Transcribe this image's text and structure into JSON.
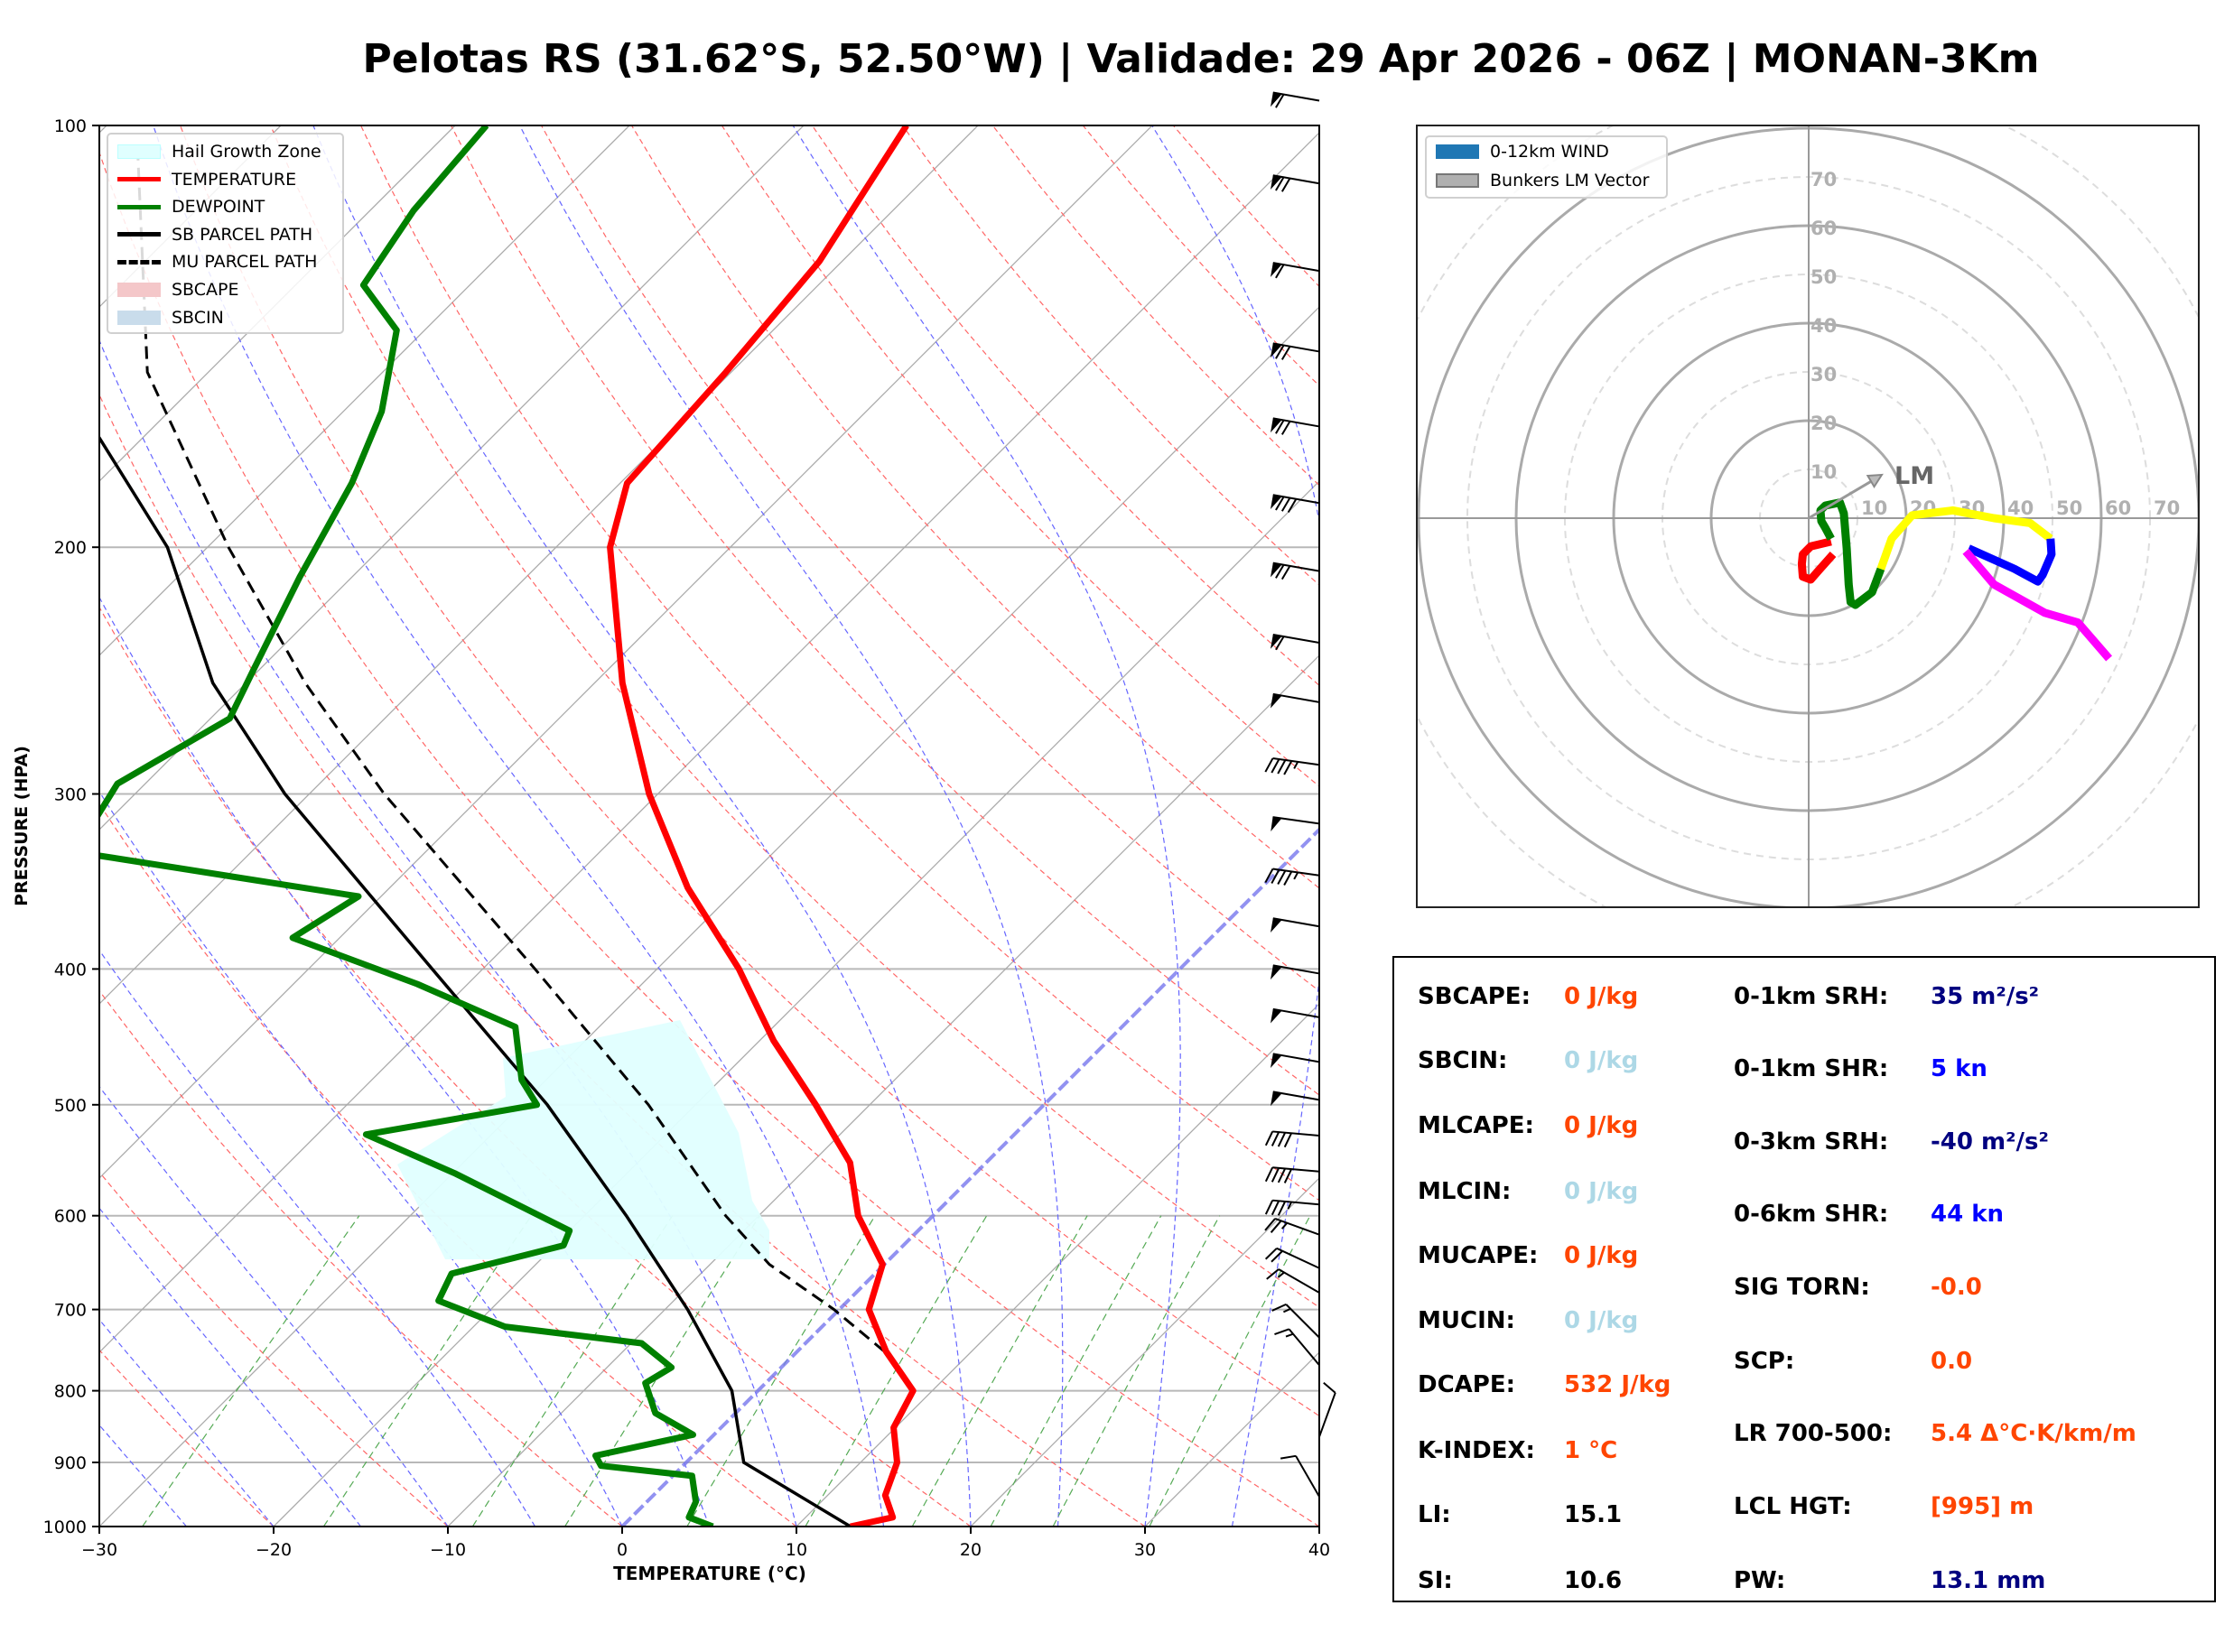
{
  "title": "Pelotas RS (31.62°S, 52.50°W) | Validade: 29 Apr 2026 - 06Z | MONAN-3Km",
  "colors": {
    "temperature": "#ff0000",
    "dewpoint": "#008000",
    "parcel": "#000000",
    "hail": "#e0ffff",
    "orange": "#ff4500",
    "lightblue": "#add8e6",
    "navy": "#000080",
    "blue": "#0000ff"
  },
  "skewt_legend": [
    {
      "label": "Hail Growth Zone",
      "style": "fill",
      "color": "#e0ffff"
    },
    {
      "label": "TEMPERATURE",
      "style": "line",
      "color": "#ff0000"
    },
    {
      "label": "DEWPOINT",
      "style": "line",
      "color": "#008000"
    },
    {
      "label": "SB PARCEL PATH",
      "style": "line",
      "color": "#000000"
    },
    {
      "label": "MU PARCEL PATH",
      "style": "dashed",
      "color": "#000000"
    },
    {
      "label": "SBCAPE",
      "style": "fill",
      "color": "#f4c7c9"
    },
    {
      "label": "SBCIN",
      "style": "fill",
      "color": "#c9dceb"
    }
  ],
  "hodo_legend": [
    {
      "label": "0-12km WIND",
      "style": "fill",
      "color": "#1f77b4"
    },
    {
      "label": "Bunkers LM Vector",
      "style": "fill",
      "color": "#b0b0b0"
    }
  ],
  "chart_data": [
    {
      "type": "skew-t",
      "xlabel": "TEMPERATURE (°C)",
      "ylabel": "PRESSURE (HPA)",
      "xlim": [
        -30,
        40
      ],
      "ylim": [
        1000,
        100
      ],
      "yscale": "log",
      "xticks": [
        -30,
        -20,
        -10,
        0,
        10,
        20,
        30,
        40
      ],
      "yticks": [
        100,
        200,
        300,
        400,
        500,
        600,
        700,
        800,
        900,
        1000
      ],
      "grid": true,
      "legend_position": "top-left",
      "temperature": {
        "p": [
          1000,
          985,
          950,
          900,
          850,
          800,
          750,
          700,
          650,
          600,
          550,
          500,
          450,
          400,
          350,
          300,
          250,
          200,
          180,
          150,
          125,
          100
        ],
        "t": [
          13.1,
          15.0,
          13.3,
          12.1,
          9.9,
          8.9,
          5.1,
          1.7,
          -0.1,
          -4.3,
          -7.8,
          -13.1,
          -19.2,
          -25.3,
          -32.9,
          -40.5,
          -48.4,
          -56.9,
          -59.6,
          -60.3,
          -61.3,
          -64.1
        ]
      },
      "dewpoint": {
        "p": [
          1000,
          985,
          960,
          920,
          905,
          890,
          860,
          830,
          790,
          770,
          740,
          720,
          690,
          660,
          630,
          615,
          560,
          525,
          500,
          480,
          440,
          410,
          380,
          355,
          330,
          295,
          265,
          245,
          210,
          180,
          160,
          140,
          130,
          115,
          100
        ],
        "td": [
          5.2,
          3.3,
          2.8,
          1.1,
          -4.7,
          -5.6,
          -1.2,
          -4.6,
          -6.9,
          -6.3,
          -9.4,
          -18.2,
          -23.5,
          -24.3,
          -19.5,
          -20.0,
          -29.8,
          -37.2,
          -29.1,
          -31.4,
          -34.8,
          -42.9,
          -52.7,
          -51.3,
          -70.1,
          -71.6,
          -68.9,
          -70.3,
          -73.0,
          -75.4,
          -77.8,
          -81.6,
          -86.1,
          -87.5,
          -88.2
        ]
      },
      "sb_parcel": {
        "p": [
          1000,
          900,
          800,
          700,
          600,
          500,
          400,
          300,
          250,
          200,
          165
        ],
        "t": [
          13.1,
          3.3,
          -1.5,
          -8.7,
          -17.6,
          -28.5,
          -42.9,
          -61.4,
          -71.9,
          -82.3,
          -93.2
        ]
      },
      "mu_parcel": {
        "p": [
          750,
          700,
          650,
          600,
          500,
          400,
          300,
          250,
          200,
          150,
          105
        ],
        "t": [
          5.0,
          -0.3,
          -6.6,
          -11.9,
          -22.7,
          -37.0,
          -55.7,
          -66.6,
          -78.8,
          -93.5,
          -106.5
        ]
      },
      "hail_growth_zone_hpa": [
        650,
        440
      ],
      "wind_barbs": {
        "p": [
          96,
          110,
          127,
          145,
          164,
          186,
          208,
          234,
          258,
          286,
          315,
          343,
          373,
          403,
          433,
          466,
          496,
          526,
          558,
          589,
          619,
          654,
          681,
          733,
          767,
          863,
          952
        ],
        "dir": [
          280,
          280,
          280,
          280,
          280,
          280,
          280,
          280,
          280,
          278,
          278,
          278,
          280,
          280,
          280,
          280,
          280,
          275,
          275,
          275,
          290,
          295,
          300,
          315,
          320,
          20,
          330
        ],
        "spd_kt": [
          60,
          70,
          60,
          70,
          70,
          80,
          70,
          60,
          50,
          45,
          50,
          45,
          50,
          50,
          50,
          50,
          50,
          40,
          40,
          35,
          25,
          20,
          15,
          15,
          15,
          10,
          10
        ]
      }
    },
    {
      "type": "hodograph",
      "ring_labels": [
        "10",
        "20",
        "30",
        "40",
        "50",
        "60",
        "70"
      ],
      "rings_kt": [
        10,
        20,
        30,
        40,
        50,
        60,
        70,
        80,
        90
      ],
      "segments": [
        {
          "color": "#ff0000",
          "u": [
            4.6,
            0.4,
            -1.2,
            -1.4,
            -1.2,
            0.4,
            1.8,
            5.0
          ],
          "v": [
            -4.8,
            -5.8,
            -7.4,
            -9.4,
            -12.0,
            -12.6,
            -11.0,
            -7.4
          ]
        },
        {
          "color": "#008000",
          "u": [
            4.6,
            3.4,
            2.6,
            2.4,
            3.4,
            6.4,
            7.2,
            7.8,
            8.2,
            8.6,
            9.6,
            13.0,
            14.8
          ],
          "v": [
            -4.2,
            -2.0,
            -0.6,
            1.6,
            2.6,
            3.2,
            1.0,
            -6.2,
            -13.6,
            -17.2,
            -17.8,
            -15.2,
            -10.4
          ]
        },
        {
          "color": "#ffff00",
          "u": [
            14.8,
            17.0,
            21.2,
            29.6,
            38.0,
            45.4,
            49.6
          ],
          "v": [
            -10.4,
            -4.2,
            0.6,
            1.6,
            0,
            -1.0,
            -4.2
          ]
        },
        {
          "color": "#0000ff",
          "u": [
            49.6,
            49.8,
            48.0,
            47.0,
            42.2,
            32.8
          ],
          "v": [
            -4.2,
            -7.4,
            -11.6,
            -13.0,
            -10.4,
            -6.2
          ]
        },
        {
          "color": "#ff00ff",
          "u": [
            32.2,
            38.0,
            48.4,
            55.2,
            61.6
          ],
          "v": [
            -6.8,
            -13.6,
            -19.4,
            -21.4,
            -28.8
          ]
        }
      ],
      "bunkers_lm": {
        "label": "LM",
        "u": 15.0,
        "v": 8.9
      }
    }
  ],
  "stats": {
    "left": [
      {
        "label": "SBCAPE:",
        "value": "0 J/kg",
        "color": "#ff4500"
      },
      {
        "label": "SBCIN:",
        "value": "0 J/kg",
        "color": "#add8e6"
      },
      {
        "label": "MLCAPE:",
        "value": "0 J/kg",
        "color": "#ff4500"
      },
      {
        "label": "MLCIN:",
        "value": "0 J/kg",
        "color": "#add8e6"
      },
      {
        "label": "MUCAPE:",
        "value": "0 J/kg",
        "color": "#ff4500"
      },
      {
        "label": "MUCIN:",
        "value": "0 J/kg",
        "color": "#add8e6"
      },
      {
        "label": "DCAPE:",
        "value": "532 J/kg",
        "color": "#ff4500"
      },
      {
        "label": "K-INDEX:",
        "value": "1 °C",
        "color": "#ff4500"
      },
      {
        "label": "LI:",
        "value": "15.1",
        "color": "#000000"
      },
      {
        "label": "SI:",
        "value": "10.6",
        "color": "#000000"
      }
    ],
    "right": [
      {
        "label": "0-1km SRH:",
        "value": "35 m²/s²",
        "color": "#000080"
      },
      {
        "label": "0-1km SHR:",
        "value": "5 kn",
        "color": "#0000ff"
      },
      {
        "label": "0-3km SRH:",
        "value": "-40 m²/s²",
        "color": "#000080"
      },
      {
        "label": "0-6km SHR:",
        "value": "44 kn",
        "color": "#0000ff"
      },
      {
        "label": "SIG TORN:",
        "value": "-0.0",
        "color": "#ff4500"
      },
      {
        "label": "SCP:",
        "value": "0.0",
        "color": "#ff4500"
      },
      {
        "label": "LR 700-500:",
        "value": "5.4 Δ°C·K/km/m",
        "color": "#ff4500"
      },
      {
        "label": "LCL HGT:",
        "value": "[995] m",
        "color": "#ff4500"
      },
      {
        "label": "PW:",
        "value": "13.1 mm",
        "color": "#000080"
      }
    ]
  }
}
